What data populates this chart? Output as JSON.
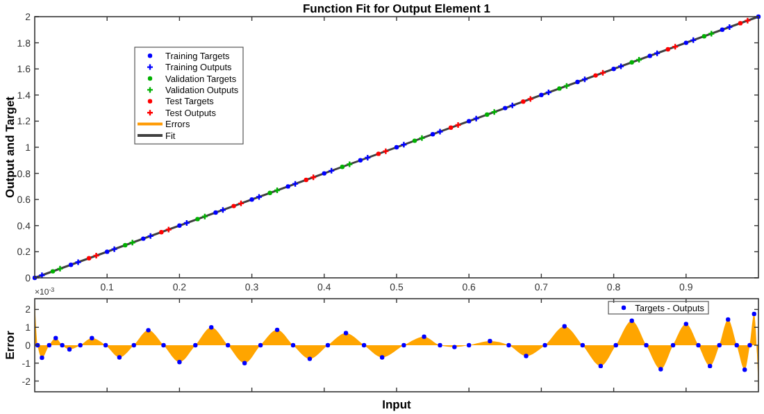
{
  "chart_data": [
    {
      "type": "scatter",
      "title": "Function Fit for Output Element 1",
      "ylabel": "Output and Target",
      "xlim": [
        0,
        1
      ],
      "ylim": [
        0,
        2
      ],
      "xticks": [
        0.1,
        0.2,
        0.3,
        0.4,
        0.5,
        0.6,
        0.7,
        0.8,
        0.9
      ],
      "yticks": [
        0,
        0.2,
        0.4,
        0.6,
        0.8,
        1,
        1.2,
        1.4,
        1.6,
        1.8,
        2
      ],
      "grid": false,
      "legend": "top left",
      "series": [
        {
          "name": "Training Targets",
          "color": "#0000ff",
          "marker": "circle",
          "x": [
            0,
            0.05,
            0.1,
            0.15,
            0.2,
            0.25,
            0.3,
            0.35,
            0.4,
            0.45,
            0.5,
            0.55,
            0.6,
            0.65,
            0.7,
            0.75,
            0.8,
            0.85,
            0.9,
            0.95,
            1
          ],
          "values": [
            0,
            0.1,
            0.2,
            0.3,
            0.4,
            0.5,
            0.6,
            0.7,
            0.8,
            0.9,
            1,
            1.1,
            1.2,
            1.3,
            1.4,
            1.5,
            1.6,
            1.7,
            1.8,
            1.9,
            2
          ]
        },
        {
          "name": "Training Outputs",
          "color": "#0000ff",
          "marker": "cross",
          "x": [
            0.01,
            0.06,
            0.11,
            0.16,
            0.21,
            0.26,
            0.31,
            0.36,
            0.41,
            0.46,
            0.51,
            0.56,
            0.61,
            0.66,
            0.71,
            0.76,
            0.81,
            0.86,
            0.91,
            0.96
          ],
          "values": [
            0.02,
            0.12,
            0.22,
            0.32,
            0.42,
            0.52,
            0.62,
            0.72,
            0.82,
            0.92,
            1.02,
            1.12,
            1.22,
            1.32,
            1.42,
            1.52,
            1.62,
            1.72,
            1.82,
            1.92
          ]
        },
        {
          "name": "Validation Targets",
          "color": "#00b000",
          "marker": "circle",
          "x": [
            0.025,
            0.125,
            0.225,
            0.325,
            0.425,
            0.525,
            0.625,
            0.725,
            0.825,
            0.925
          ],
          "values": [
            0.05,
            0.25,
            0.45,
            0.65,
            0.85,
            1.05,
            1.25,
            1.45,
            1.65,
            1.85
          ]
        },
        {
          "name": "Validation Outputs",
          "color": "#00b000",
          "marker": "cross",
          "x": [
            0.035,
            0.135,
            0.235,
            0.335,
            0.435,
            0.535,
            0.635,
            0.735,
            0.835,
            0.935
          ],
          "values": [
            0.07,
            0.27,
            0.47,
            0.67,
            0.87,
            1.07,
            1.27,
            1.47,
            1.67,
            1.87
          ]
        },
        {
          "name": "Test Targets",
          "color": "#ff0000",
          "marker": "circle",
          "x": [
            0.075,
            0.175,
            0.275,
            0.375,
            0.475,
            0.575,
            0.675,
            0.775,
            0.875,
            0.975
          ],
          "values": [
            0.15,
            0.35,
            0.55,
            0.75,
            0.95,
            1.15,
            1.35,
            1.55,
            1.75,
            1.95
          ]
        },
        {
          "name": "Test Outputs",
          "color": "#ff0000",
          "marker": "cross",
          "x": [
            0.085,
            0.185,
            0.285,
            0.385,
            0.485,
            0.585,
            0.685,
            0.785,
            0.885,
            0.985
          ],
          "values": [
            0.17,
            0.37,
            0.57,
            0.77,
            0.97,
            1.17,
            1.37,
            1.57,
            1.77,
            1.97
          ]
        },
        {
          "name": "Errors",
          "type": "line",
          "color": "#ff9900"
        },
        {
          "name": "Fit",
          "type": "line",
          "color": "#404040",
          "x": [
            0,
            1
          ],
          "values": [
            0,
            2
          ]
        }
      ]
    },
    {
      "type": "area",
      "xlabel": "Input",
      "ylabel": "Error",
      "annotations": [
        "×10$^{-3}$"
      ],
      "xlim": [
        0,
        1
      ],
      "ylim": [
        -2.6,
        2.6
      ],
      "xticks": [
        0.1,
        0.2,
        0.3,
        0.4,
        0.5,
        0.6,
        0.7,
        0.8,
        0.9
      ],
      "yticks": [
        -2,
        -1,
        0,
        1,
        2
      ],
      "tick_labels": "y",
      "grid": false,
      "legend": "top right",
      "series": [
        {
          "color": "#ffa500",
          "x": [
            0,
            0.004,
            0.01,
            0.02,
            0.029,
            0.038,
            0.048,
            0.063,
            0.079,
            0.098,
            0.117,
            0.137,
            0.157,
            0.178,
            0.2,
            0.222,
            0.244,
            0.267,
            0.29,
            0.312,
            0.335,
            0.357,
            0.38,
            0.405,
            0.43,
            0.455,
            0.48,
            0.51,
            0.538,
            0.56,
            0.58,
            0.6,
            0.629,
            0.655,
            0.679,
            0.705,
            0.732,
            0.757,
            0.782,
            0.803,
            0.825,
            0.845,
            0.865,
            0.882,
            0.9,
            0.917,
            0.933,
            0.946,
            0.958,
            0.97,
            0.981,
            0.988,
            0.994,
            1
          ],
          "values": [
            2.5,
            0,
            -0.7,
            0,
            0.4,
            0,
            -0.23,
            0,
            0.4,
            0,
            -0.68,
            0,
            0.84,
            0,
            -0.94,
            0,
            1,
            0,
            -1,
            0,
            0.86,
            0,
            -0.76,
            0,
            0.68,
            0,
            -0.68,
            0,
            0.48,
            0,
            -0.1,
            0,
            0.23,
            0,
            -0.6,
            0,
            1.06,
            0,
            -1.16,
            0,
            1.37,
            0,
            -1.34,
            0,
            1.19,
            0,
            -1.16,
            0,
            1.44,
            0,
            -1.37,
            0,
            1.75,
            -2.5
          ]
        },
        {
          "name": "Targets - Outputs",
          "type": "scatter",
          "marker": "circle",
          "color": "#0000ff",
          "x": [
            0.004,
            0.01,
            0.02,
            0.029,
            0.038,
            0.048,
            0.063,
            0.079,
            0.098,
            0.117,
            0.137,
            0.157,
            0.178,
            0.2,
            0.222,
            0.244,
            0.267,
            0.29,
            0.312,
            0.335,
            0.357,
            0.38,
            0.405,
            0.43,
            0.455,
            0.48,
            0.51,
            0.538,
            0.56,
            0.58,
            0.6,
            0.629,
            0.655,
            0.679,
            0.705,
            0.732,
            0.757,
            0.782,
            0.803,
            0.825,
            0.845,
            0.865,
            0.882,
            0.9,
            0.917,
            0.933,
            0.946,
            0.958,
            0.97,
            0.981,
            0.988,
            0.994
          ],
          "values": [
            0,
            -0.7,
            0,
            0.4,
            0,
            -0.23,
            0,
            0.4,
            0,
            -0.68,
            0,
            0.84,
            0,
            -0.94,
            0,
            1,
            0,
            -1,
            0,
            0.86,
            0,
            -0.76,
            0,
            0.68,
            0,
            -0.68,
            0,
            0.48,
            0,
            -0.1,
            0,
            0.23,
            0,
            -0.6,
            0,
            1.06,
            0,
            -1.16,
            0,
            1.37,
            0,
            -1.34,
            0,
            1.19,
            0,
            -1.16,
            0,
            1.44,
            0,
            -1.37,
            0,
            1.75
          ]
        }
      ]
    }
  ]
}
